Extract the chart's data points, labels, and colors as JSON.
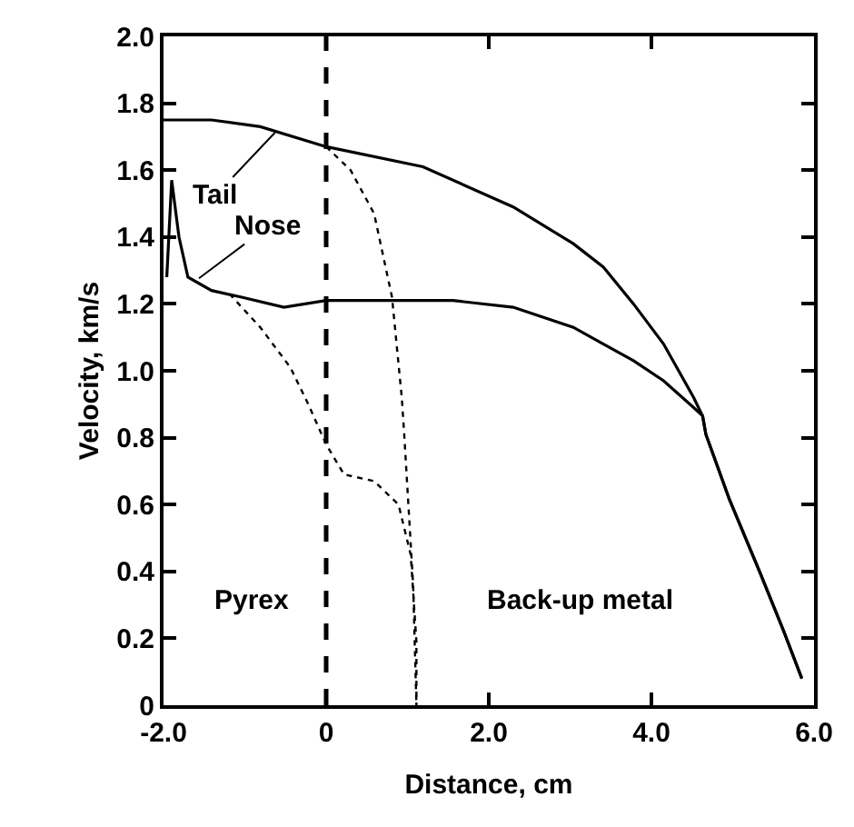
{
  "chart_data": {
    "type": "line",
    "xlabel": "Distance, cm",
    "ylabel": "Velocity, km/s",
    "xlim": [
      -2.0,
      6.0
    ],
    "xticks": [
      {
        "value": -2.0,
        "label": "-2.0"
      },
      0,
      {
        "value": 2.0,
        "label": "2.0"
      },
      {
        "value": 4.0,
        "label": "4.0"
      },
      {
        "value": 6.0,
        "label": "6.0"
      }
    ],
    "ylim": [
      0,
      2.0
    ],
    "yticks": [
      0,
      {
        "value": 0.2,
        "label": "0.2"
      },
      {
        "value": 0.4,
        "label": "0.4"
      },
      {
        "value": 0.6,
        "label": "0.6"
      },
      {
        "value": 0.8,
        "label": "0.8"
      },
      {
        "value": 1.0,
        "label": "1.0"
      },
      {
        "value": 1.2,
        "label": "1.2"
      },
      {
        "value": 1.4,
        "label": "1.4"
      },
      {
        "value": 1.6,
        "label": "1.6"
      },
      {
        "value": 1.8,
        "label": "1.8"
      },
      {
        "value": 2.0,
        "label": "2.0"
      }
    ],
    "marker": "none",
    "series": [
      {
        "color": "#000000",
        "line_style": "solid",
        "x": [
          -2.0,
          -1.41,
          -0.81,
          0,
          1.19,
          2.3,
          3.04,
          3.41,
          3.78,
          4.15,
          4.52,
          4.63,
          4.67,
          4.96,
          5.33,
          5.63,
          5.85
        ],
        "values": [
          1.75,
          1.75,
          1.73,
          1.67,
          1.61,
          1.49,
          1.38,
          1.31,
          1.2,
          1.08,
          0.92,
          0.865,
          0.81,
          0.615,
          0.4,
          0.22,
          0.08
        ]
      },
      {
        "color": "#000000",
        "line_style": "solid",
        "x": [
          -1.96,
          -1.9,
          -1.81,
          -1.7,
          -1.41,
          -1.04,
          -0.52,
          0,
          0.44,
          1.56,
          2.3,
          3.04,
          3.41,
          3.78,
          4.15,
          4.52,
          4.63,
          4.67,
          4.96,
          5.33,
          5.63,
          5.85
        ],
        "values": [
          1.28,
          1.57,
          1.4,
          1.28,
          1.24,
          1.22,
          1.19,
          1.21,
          1.21,
          1.21,
          1.19,
          1.13,
          1.08,
          1.03,
          0.97,
          0.89,
          0.865,
          0.81,
          0.615,
          0.4,
          0.22,
          0.08
        ]
      },
      {
        "color": "#000000",
        "line_style": "dotted",
        "x": [
          -1.19,
          -0.81,
          -0.44,
          -0.22,
          0,
          0.22,
          0.59,
          0.89,
          1.04,
          1.11,
          1.11
        ],
        "values": [
          1.23,
          1.13,
          1.01,
          0.9,
          0.78,
          0.69,
          0.67,
          0.6,
          0.45,
          0.19,
          0.0
        ]
      },
      {
        "color": "#000000",
        "line_style": "dotted",
        "x": [
          0,
          0.3,
          0.59,
          0.81,
          0.93,
          0.96,
          1.07,
          1.11
        ],
        "values": [
          1.67,
          1.6,
          1.47,
          1.22,
          0.92,
          0.81,
          0.36,
          0.0
        ]
      }
    ],
    "ref_lines": [
      {
        "axis": "x",
        "value": 0,
        "label": null,
        "color": "#000000",
        "line_style": "dashed"
      }
    ],
    "annotations": [
      {
        "text": "Tail",
        "x": -0.6,
        "y": 1.72
      },
      {
        "text": "Nose",
        "x": -1.6,
        "y": 1.27
      },
      "Pyrex",
      "Back-up metal"
    ]
  }
}
